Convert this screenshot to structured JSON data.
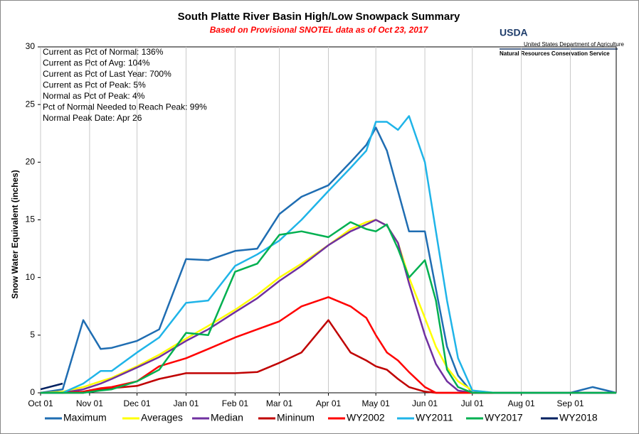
{
  "chart_data": {
    "type": "line",
    "title": "South Platte River Basin High/Low Snowpack Summary",
    "subtitle": "Based on Provisional SNOTEL data as of Oct 23, 2017",
    "agency": "USDA",
    "agency_name": "United States Department of Agriculture",
    "agency_service": "Natural Resources Conservation Service",
    "notes": [
      "Current  as Pct of Normal: 136%",
      "Current  as Pct of Avg: 104%",
      "Current  as Pct of Last Year: 700%",
      "Current  as Pct of Peak: 5%",
      "Normal  as Pct of Peak: 4%",
      "Pct of Normal  Needed  to Reach Peak: 99%",
      "Normal  Peak Date: Apr 26"
    ],
    "y_label": "Snow Water Equivalent (inches)",
    "x": [
      "Oct 01",
      "Oct 15",
      "Oct 28",
      "Nov 08",
      "Nov 15",
      "Dec 01",
      "Dec 15",
      "Jan 01",
      "Jan 15",
      "Feb 01",
      "Feb 15",
      "Mar 01",
      "Mar 15",
      "Apr 01",
      "Apr 15",
      "Apr 25",
      "May 01",
      "May 08",
      "May 15",
      "May 22",
      "Jun 01",
      "Jun 08",
      "Jun 15",
      "Jun 22",
      "Jul 01",
      "Jul 15",
      "Aug 01",
      "Aug 15",
      "Sep 01",
      "Sep 15",
      "Sep 30"
    ],
    "xlim": [
      "Oct 01",
      "Sep 30"
    ],
    "xticks": [
      "Oct 01",
      "Nov 01",
      "Dec 01",
      "Jan 01",
      "Feb 01",
      "Mar 01",
      "Apr 01",
      "May 01",
      "Jun 01",
      "Jul 01",
      "Aug 01",
      "Sep 01"
    ],
    "ylim": [
      0,
      30
    ],
    "yticks": [
      0,
      5,
      10,
      15,
      20,
      25,
      30
    ],
    "grid": "x",
    "series": [
      {
        "name": "Maximum",
        "color": "#1f6db2",
        "values": [
          0,
          0.3,
          6.3,
          3.8,
          3.9,
          4.5,
          5.5,
          11.6,
          11.5,
          12.3,
          12.5,
          15.5,
          17.0,
          18.0,
          20.0,
          21.5,
          23.0,
          21.0,
          17.5,
          14.0,
          14.0,
          9.0,
          4.0,
          1.5,
          0,
          0,
          0,
          0,
          0,
          0.5,
          0
        ]
      },
      {
        "name": "Averages",
        "color": "#ffff00",
        "values": [
          0,
          0.1,
          0.5,
          1.0,
          1.3,
          2.3,
          3.3,
          4.7,
          5.8,
          7.2,
          8.5,
          10.0,
          11.2,
          12.8,
          14.2,
          14.8,
          15.0,
          14.5,
          13.0,
          10.0,
          6.5,
          4.0,
          2.2,
          1.0,
          0.2,
          0,
          0,
          0,
          0,
          0,
          0
        ]
      },
      {
        "name": "Median",
        "color": "#7030a0",
        "values": [
          0,
          0,
          0.3,
          0.8,
          1.2,
          2.2,
          3.1,
          4.5,
          5.5,
          7.0,
          8.2,
          9.7,
          11.0,
          12.8,
          14.0,
          14.6,
          15.0,
          14.5,
          13.0,
          9.5,
          5.0,
          2.5,
          1.0,
          0.2,
          0,
          0,
          0,
          0,
          0,
          0,
          0
        ]
      },
      {
        "name": "Mininum",
        "color": "#c00000",
        "values": [
          0,
          0,
          0,
          0.3,
          0.4,
          0.6,
          1.2,
          1.7,
          1.7,
          1.7,
          1.8,
          2.6,
          3.5,
          6.3,
          3.5,
          2.8,
          2.3,
          2.0,
          1.2,
          0.5,
          0.1,
          0,
          0,
          0,
          0,
          0,
          0,
          0,
          0,
          0,
          0
        ]
      },
      {
        "name": "WY2002",
        "color": "#ff0000",
        "values": [
          0,
          0,
          0.1,
          0.4,
          0.5,
          1.0,
          2.3,
          3.0,
          3.8,
          4.8,
          5.5,
          6.2,
          7.5,
          8.3,
          7.5,
          6.5,
          5.0,
          3.5,
          2.8,
          1.8,
          0.5,
          0,
          0,
          0,
          0,
          0,
          0,
          0,
          0,
          0,
          0
        ]
      },
      {
        "name": "WY2011",
        "color": "#1fb4e8",
        "values": [
          0,
          0,
          0.8,
          1.9,
          1.9,
          3.5,
          4.8,
          7.8,
          8.0,
          11.0,
          12.0,
          13.2,
          15.0,
          17.5,
          19.5,
          21.0,
          23.5,
          23.5,
          22.8,
          24.0,
          20.0,
          14.0,
          8.0,
          3.0,
          0.2,
          0,
          0,
          0,
          0,
          0,
          0
        ]
      },
      {
        "name": "WY2017",
        "color": "#00b050",
        "values": [
          0,
          0,
          0,
          0.2,
          0.3,
          1.0,
          2.0,
          5.2,
          5.0,
          10.5,
          11.2,
          13.7,
          14.0,
          13.5,
          14.8,
          14.2,
          14.0,
          14.6,
          12.5,
          10.0,
          11.5,
          8.0,
          2.0,
          0.5,
          0,
          0,
          0,
          0,
          0,
          0,
          0
        ]
      },
      {
        "name": "WY2018",
        "color": "#002060",
        "values": [
          0.3,
          0.8,
          null,
          null,
          null,
          null,
          null,
          null,
          null,
          null,
          null,
          null,
          null,
          null,
          null,
          null,
          null,
          null,
          null,
          null,
          null,
          null,
          null,
          null,
          null,
          null,
          null,
          null,
          null,
          null,
          null
        ]
      }
    ]
  }
}
